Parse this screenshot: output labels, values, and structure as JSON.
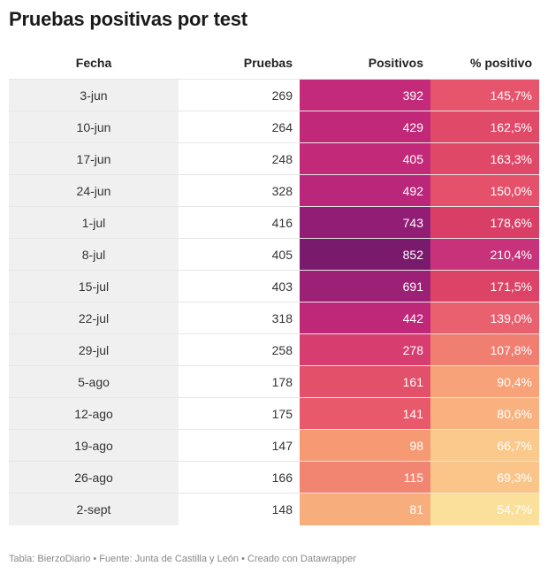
{
  "title": "Pruebas positivas por test",
  "footer": "Tabla: BierzoDiario • Fuente: Junta de Castilla y León • Creado con Datawrapper",
  "chart_data": {
    "type": "table",
    "columns": [
      "Fecha",
      "Pruebas",
      "Positivos",
      "% positivo"
    ],
    "rows": [
      {
        "fecha": "3-jun",
        "pruebas": "269",
        "positivos": "392",
        "pct": "145,7%",
        "positivos_color": "#c42a7a",
        "pct_color": "#e7556c"
      },
      {
        "fecha": "10-jun",
        "pruebas": "264",
        "positivos": "429",
        "pct": "162,5%",
        "positivos_color": "#c12878",
        "pct_color": "#e14968"
      },
      {
        "fecha": "17-jun",
        "pruebas": "248",
        "positivos": "405",
        "pct": "163,3%",
        "positivos_color": "#c32979",
        "pct_color": "#e04868"
      },
      {
        "fecha": "24-jun",
        "pruebas": "328",
        "positivos": "492",
        "pct": "150,0%",
        "positivos_color": "#b9267a",
        "pct_color": "#e5516b"
      },
      {
        "fecha": "1-jul",
        "pruebas": "416",
        "positivos": "743",
        "pct": "178,6%",
        "positivos_color": "#911e74",
        "pct_color": "#d93f66"
      },
      {
        "fecha": "8-jul",
        "pruebas": "405",
        "positivos": "852",
        "pct": "210,4%",
        "positivos_color": "#7a1a6c",
        "pct_color": "#c8327a"
      },
      {
        "fecha": "15-jul",
        "pruebas": "403",
        "positivos": "691",
        "pct": "171,5%",
        "positivos_color": "#9c2076",
        "pct_color": "#dc4367"
      },
      {
        "fecha": "22-jul",
        "pruebas": "318",
        "positivos": "442",
        "pct": "139,0%",
        "positivos_color": "#bf2779",
        "pct_color": "#e9606e"
      },
      {
        "fecha": "29-jul",
        "pruebas": "258",
        "positivos": "278",
        "pct": "107,8%",
        "positivos_color": "#d73d6e",
        "pct_color": "#f17f71"
      },
      {
        "fecha": "5-ago",
        "pruebas": "178",
        "positivos": "161",
        "pct": "90,4%",
        "positivos_color": "#e2506a",
        "pct_color": "#f7a278"
      },
      {
        "fecha": "12-ago",
        "pruebas": "175",
        "positivos": "141",
        "pct": "80,6%",
        "positivos_color": "#e85a6b",
        "pct_color": "#f9b27f"
      },
      {
        "fecha": "19-ago",
        "pruebas": "147",
        "positivos": "98",
        "pct": "66,7%",
        "positivos_color": "#f69a74",
        "pct_color": "#fbc98c"
      },
      {
        "fecha": "26-ago",
        "pruebas": "166",
        "positivos": "115",
        "pct": "69,3%",
        "positivos_color": "#f28472",
        "pct_color": "#fbc58a"
      },
      {
        "fecha": "2-sept",
        "pruebas": "148",
        "positivos": "81",
        "pct": "54,7%",
        "positivos_color": "#f8ae7c",
        "pct_color": "#fbe09b"
      }
    ]
  }
}
